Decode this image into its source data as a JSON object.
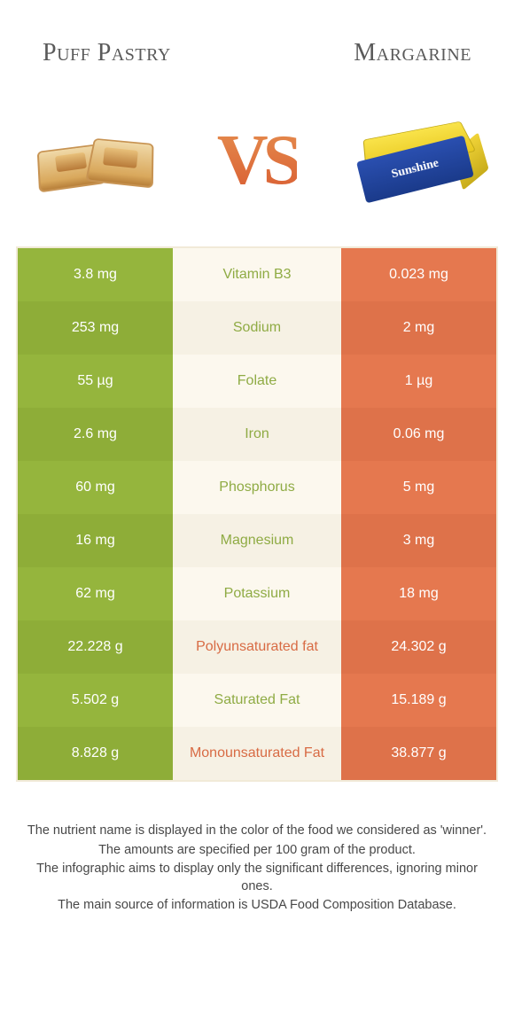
{
  "colors": {
    "green": "#95b53d",
    "green_dim": "#8ead38",
    "orange": "#e5784f",
    "orange_dim": "#de724a",
    "mid_bg": "#fcf8ee",
    "mid_bg_dim": "#f6f1e4",
    "green_text": "#8fab44",
    "orange_text": "#d86b44"
  },
  "header": {
    "left_title": "Puff Pastry",
    "right_title": "Margarine",
    "vs_label": "VS",
    "margarine_brand": "Sunshine"
  },
  "rows": [
    {
      "label": "Vitamin B3",
      "left": "3.8 mg",
      "right": "0.023 mg",
      "winner": "left"
    },
    {
      "label": "Sodium",
      "left": "253 mg",
      "right": "2 mg",
      "winner": "left"
    },
    {
      "label": "Folate",
      "left": "55 µg",
      "right": "1 µg",
      "winner": "left"
    },
    {
      "label": "Iron",
      "left": "2.6 mg",
      "right": "0.06 mg",
      "winner": "left"
    },
    {
      "label": "Phosphorus",
      "left": "60 mg",
      "right": "5 mg",
      "winner": "left"
    },
    {
      "label": "Magnesium",
      "left": "16 mg",
      "right": "3 mg",
      "winner": "left"
    },
    {
      "label": "Potassium",
      "left": "62 mg",
      "right": "18 mg",
      "winner": "left"
    },
    {
      "label": "Polyunsaturated fat",
      "left": "22.228 g",
      "right": "24.302 g",
      "winner": "right"
    },
    {
      "label": "Saturated Fat",
      "left": "5.502 g",
      "right": "15.189 g",
      "winner": "left"
    },
    {
      "label": "Monounsaturated Fat",
      "left": "8.828 g",
      "right": "38.877 g",
      "winner": "right"
    }
  ],
  "footer": {
    "line1": "The nutrient name is displayed in the color of the food we considered as 'winner'.",
    "line2": "The amounts are specified per 100 gram of the product.",
    "line3": "The infographic aims to display only the significant differences, ignoring minor ones.",
    "line4": "The main source of information is USDA Food Composition Database."
  }
}
